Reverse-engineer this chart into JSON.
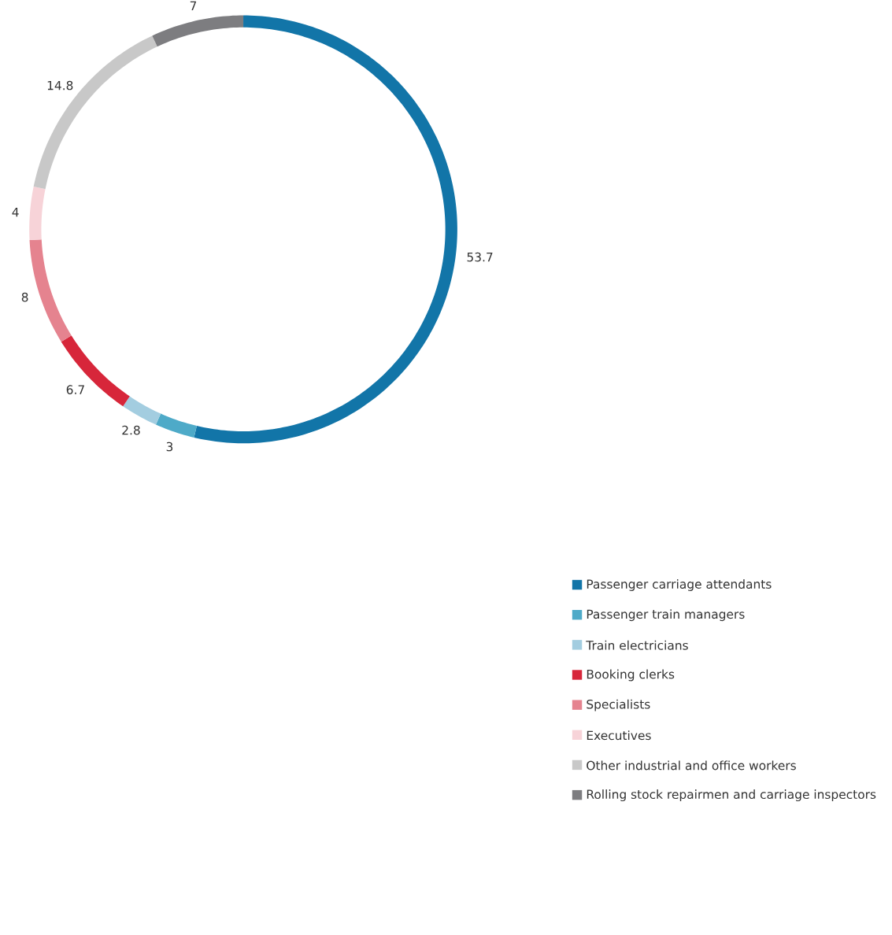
{
  "chart_data": {
    "type": "donut",
    "categories": [
      "Passenger carriage attendants",
      "Passenger train managers",
      "Train electricians",
      "Booking clerks",
      "Specialists",
      "Executives",
      "Other industrial and office workers",
      "Rolling stock repairmen and carriage inspectors"
    ],
    "values": [
      53.7,
      3,
      2.8,
      6.7,
      8,
      4,
      14.8,
      7
    ],
    "colors": [
      "#1275a8",
      "#4eaac8",
      "#a3cde0",
      "#d7263a",
      "#e5838f",
      "#f7d3d8",
      "#c8c8c8",
      "#7d7d80"
    ],
    "data_labels": true,
    "legend": "right"
  }
}
